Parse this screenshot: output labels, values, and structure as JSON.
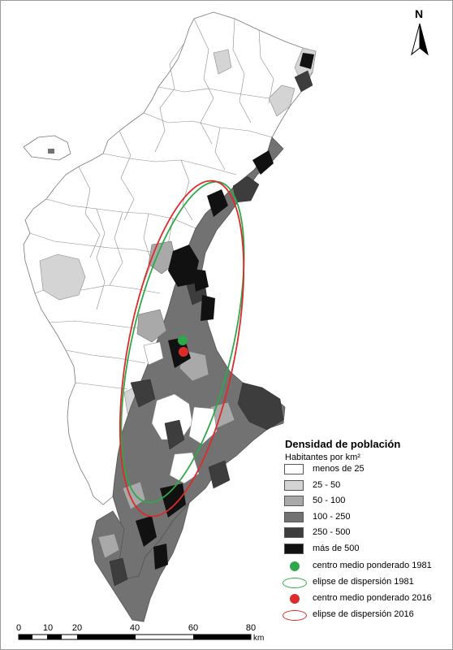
{
  "legend": {
    "title": "Densidad de población",
    "subtitle": "Habitantes por km²",
    "classes": [
      {
        "label": "menos de 25",
        "color": "#ffffff"
      },
      {
        "label": "25 - 50",
        "color": "#d4d4d4"
      },
      {
        "label": "50 - 100",
        "color": "#a9a9a9"
      },
      {
        "label": "100 - 250",
        "color": "#727272"
      },
      {
        "label": "250 - 500",
        "color": "#3d3d3d"
      },
      {
        "label": "más de 500",
        "color": "#111111"
      }
    ],
    "symbols": [
      {
        "label": "centro medio ponderado 1981",
        "kind": "point",
        "color": "#2ea84a"
      },
      {
        "label": "elipse de dispersión 1981",
        "kind": "ellipse",
        "color": "#2ea84a"
      },
      {
        "label": "centro medio ponderado 2016",
        "kind": "point",
        "color": "#dd2b2b"
      },
      {
        "label": "elipse de dispersión 2016",
        "kind": "ellipse",
        "color": "#dd2b2b"
      }
    ]
  },
  "scale": {
    "ticks": [
      "0",
      "10",
      "20",
      "40",
      "60",
      "80"
    ],
    "unit": "km"
  },
  "north": {
    "letter": "N",
    "icon": "north-arrow-icon"
  },
  "colors": {
    "green": "#2ea84a",
    "red": "#dd2b2b",
    "outline": "#555555"
  }
}
